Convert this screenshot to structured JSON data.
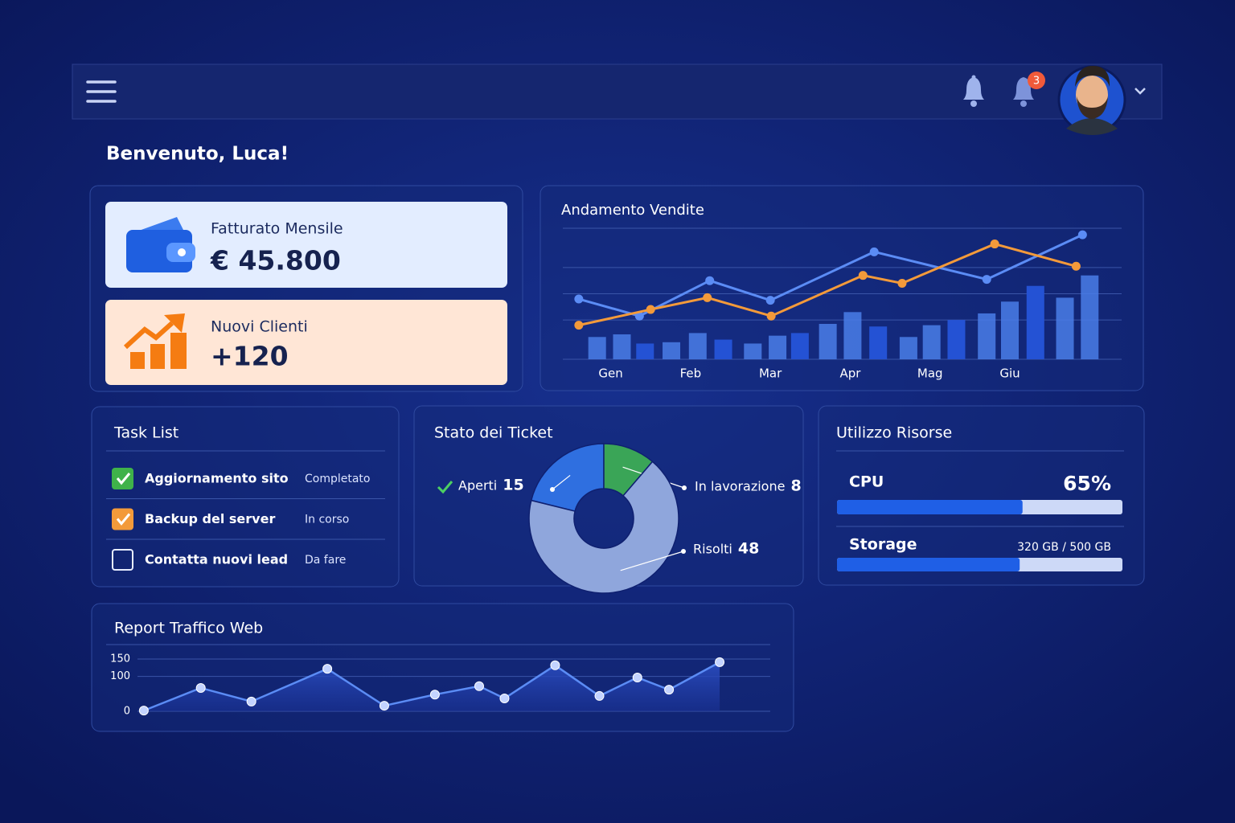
{
  "header": {
    "notification_badge": "3"
  },
  "greeting": "Benvenuto, Luca!",
  "kpis": [
    {
      "label": "Fatturato Mensile",
      "value": "€ 45.800"
    },
    {
      "label": "Nuovi Clienti",
      "value": "+120"
    }
  ],
  "tasks": {
    "title": "Task List",
    "rows": [
      {
        "name": "Aggiornamento sito",
        "status": "Completato",
        "checked": true,
        "color": "#3fb24a"
      },
      {
        "name": "Backup del server",
        "status": "In corso",
        "checked": true,
        "color": "#f39a3a"
      },
      {
        "name": "Contatta nuovi lead",
        "status": "Da fare",
        "checked": false
      }
    ]
  },
  "resources": {
    "title": "Utilizzo Risorse",
    "items": [
      {
        "name": "CPU",
        "value": 65,
        "max": 100,
        "value_label": "65%"
      },
      {
        "name": "Storage",
        "value": 320,
        "max": 500,
        "value_label": "320 GB / 500 GB"
      }
    ]
  },
  "chart_data": [
    {
      "type": "combo",
      "title": "Andamento Vendite",
      "xlim": [
        -0.6,
        6.4
      ],
      "xticks": [
        {
          "value": 0,
          "label": "Gen"
        },
        {
          "value": 1,
          "label": "Feb"
        },
        {
          "value": 2,
          "label": "Mar"
        },
        {
          "value": 3,
          "label": "Apr"
        },
        {
          "value": 4,
          "label": "Mag"
        },
        {
          "value": 5,
          "label": "Giu"
        }
      ],
      "ylim": [
        0,
        100
      ],
      "yticks": [
        0,
        30,
        50,
        70,
        100
      ],
      "grid": true,
      "bars": {
        "color": "#4a7ee8",
        "x": [
          -0.17,
          0.14,
          0.43,
          0.76,
          1.09,
          1.41,
          1.78,
          2.09,
          2.37,
          2.72,
          3.03,
          3.35,
          3.73,
          4.02,
          4.33,
          4.71,
          5.0,
          5.32,
          5.69,
          6.0
        ],
        "values": [
          17,
          19,
          12,
          13,
          20,
          15,
          12,
          18,
          20,
          27,
          36,
          25,
          17,
          26,
          30,
          35,
          44,
          56,
          47,
          64
        ]
      },
      "series": [
        {
          "color": "#5b8cf5",
          "x": [
            -0.4,
            0.36,
            1.24,
            2.0,
            3.3,
            4.71,
            5.91
          ],
          "values": [
            46,
            33,
            60,
            45,
            82,
            61,
            95
          ]
        },
        {
          "color": "#f39a3a",
          "x": [
            -0.4,
            0.5,
            1.21,
            2.01,
            3.16,
            3.65,
            4.81,
            5.83
          ],
          "values": [
            26,
            38,
            47,
            33,
            64,
            58,
            88,
            71
          ]
        }
      ]
    },
    {
      "type": "donut",
      "title": "Stato dei Ticket",
      "categories": [
        "Aperti",
        "In lavorazione",
        "Risolti"
      ],
      "values": [
        15,
        8,
        48
      ],
      "colors": [
        "#2f6fe0",
        "#3aa557",
        "#8fa6dc"
      ]
    },
    {
      "type": "area",
      "title": "Report Traffico Web",
      "xlim": [
        0,
        100
      ],
      "ylim": [
        0,
        150
      ],
      "yticks": [
        0,
        100,
        150
      ],
      "grid": true,
      "color": "#5b8cf5",
      "x": [
        1,
        10,
        18,
        30,
        39,
        47,
        54,
        58,
        66,
        73,
        79,
        84,
        92
      ],
      "values": [
        2,
        67,
        28,
        122,
        16,
        48,
        72,
        37,
        132,
        44,
        97,
        62,
        141
      ]
    }
  ]
}
